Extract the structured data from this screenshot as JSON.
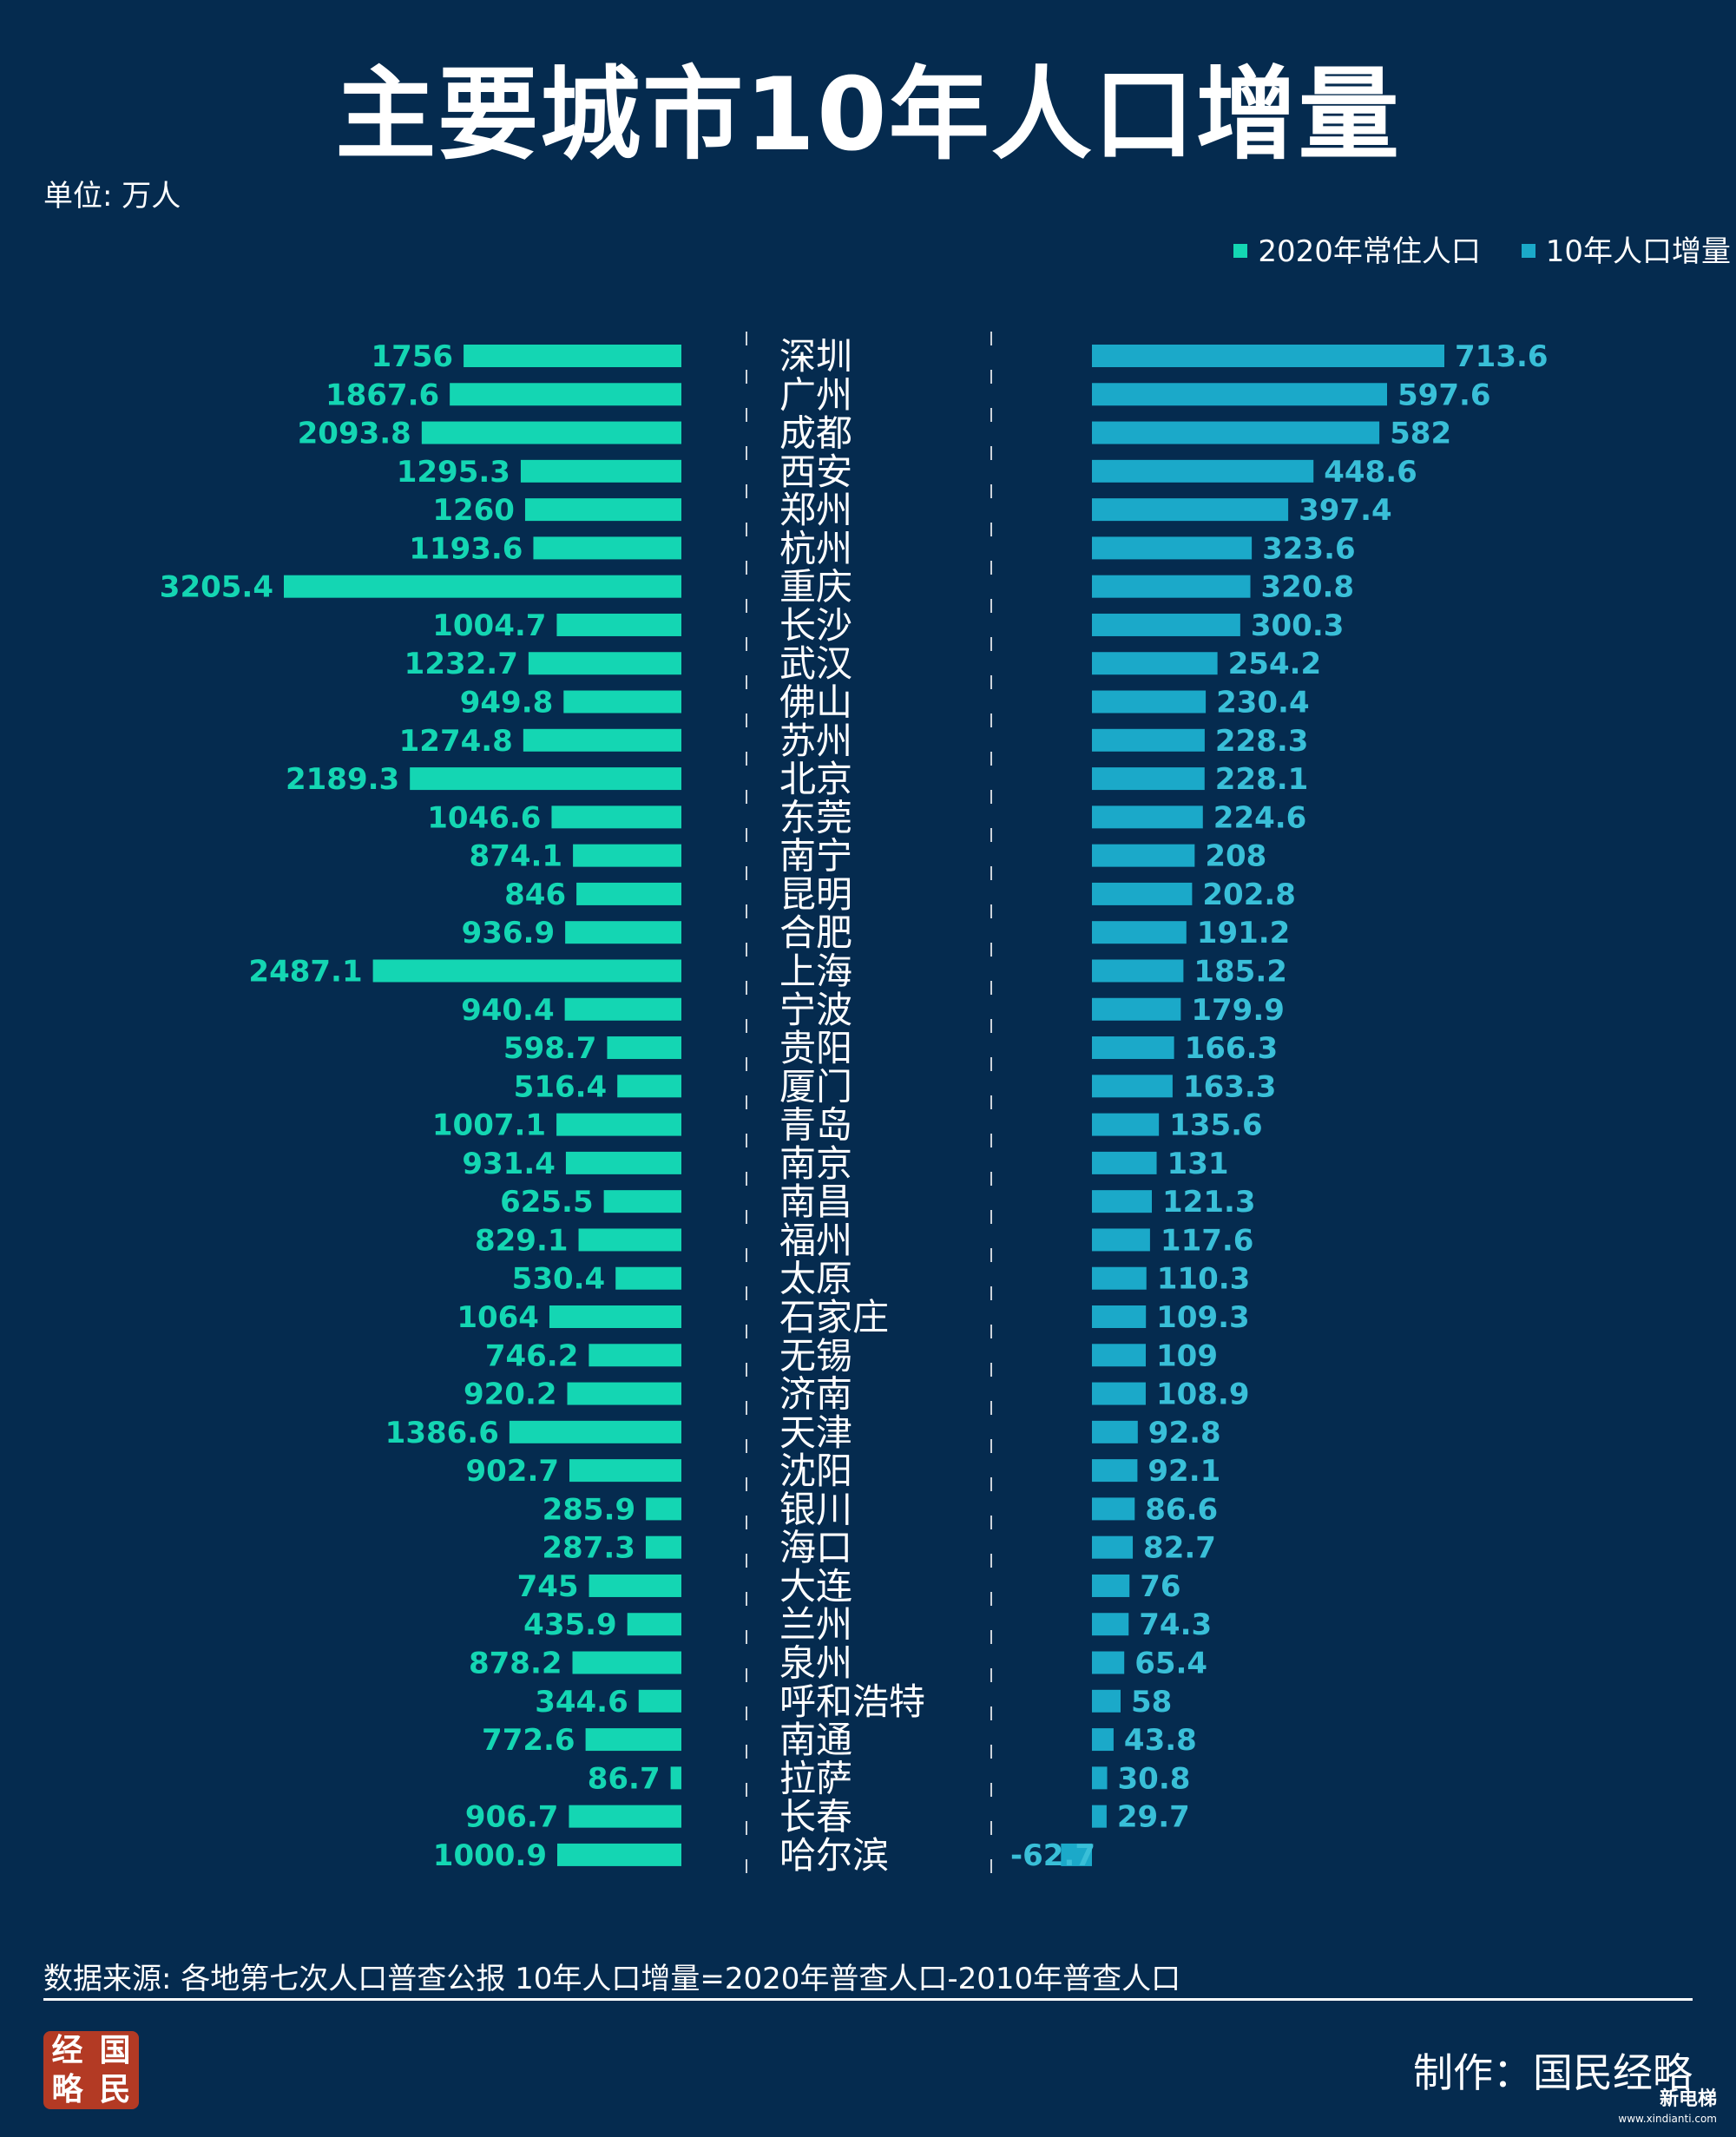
{
  "title": "主要城市10年人口增量",
  "unit": "单位: 万人",
  "source": "数据来源: 各地第七次人口普查公报  10年人口增量=2020年普查人口-2010年普查人口",
  "maker": "制作：国民经略",
  "logo": [
    "经",
    "国",
    "略",
    "民"
  ],
  "corner_mark": {
    "text": "新电梯",
    "url": "www.xindianti.com"
  },
  "colors": {
    "background": "#052b4f",
    "population": "#14d6b3",
    "increase": "#1ba9c9",
    "label_population": "#14d6b3",
    "label_increase": "#39bfd8"
  },
  "chart_data": {
    "type": "bar",
    "title": "主要城市10年人口增量",
    "unit": "万人",
    "legend_position": "top-right",
    "grid": false,
    "categories": [
      "深圳",
      "广州",
      "成都",
      "西安",
      "郑州",
      "杭州",
      "重庆",
      "长沙",
      "武汉",
      "佛山",
      "苏州",
      "北京",
      "东莞",
      "南宁",
      "昆明",
      "合肥",
      "上海",
      "宁波",
      "贵阳",
      "厦门",
      "青岛",
      "南京",
      "南昌",
      "福州",
      "太原",
      "石家庄",
      "无锡",
      "济南",
      "天津",
      "沈阳",
      "银川",
      "海口",
      "大连",
      "兰州",
      "泉州",
      "呼和浩特",
      "南通",
      "拉萨",
      "长春",
      "哈尔滨"
    ],
    "series": [
      {
        "name": "2020年常住人口",
        "values": [
          1756,
          1867.6,
          2093.8,
          1295.3,
          1260,
          1193.6,
          3205.4,
          1004.7,
          1232.7,
          949.8,
          1274.8,
          2189.3,
          1046.6,
          874.1,
          846,
          936.9,
          2487.1,
          940.4,
          598.7,
          516.4,
          1007.1,
          931.4,
          625.5,
          829.1,
          530.4,
          1064,
          746.2,
          920.2,
          1386.6,
          902.7,
          285.9,
          287.3,
          745,
          435.9,
          878.2,
          344.6,
          772.6,
          86.7,
          906.7,
          1000.9
        ]
      },
      {
        "name": "10年人口增量",
        "values": [
          713.6,
          597.6,
          582,
          448.6,
          397.4,
          323.6,
          320.8,
          300.3,
          254.2,
          230.4,
          228.3,
          228.1,
          224.6,
          208,
          202.8,
          191.2,
          185.2,
          179.9,
          166.3,
          163.3,
          135.6,
          131,
          121.3,
          117.6,
          110.3,
          109.3,
          109,
          108.9,
          92.8,
          92.1,
          86.6,
          82.7,
          76,
          74.3,
          65.4,
          58,
          43.8,
          30.8,
          29.7,
          -62.7
        ]
      }
    ]
  }
}
